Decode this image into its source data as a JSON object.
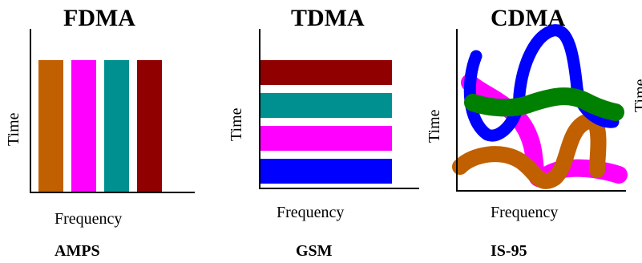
{
  "panels": [
    {
      "title": "FDMA",
      "y_axis_label": "Time",
      "x_axis_label": "Frequency",
      "system": "AMPS",
      "channels": [
        {
          "color": "#C06000"
        },
        {
          "color": "#FF00FF"
        },
        {
          "color": "#009090"
        },
        {
          "color": "#900000"
        }
      ]
    },
    {
      "title": "TDMA",
      "y_axis_label": "Time",
      "x_axis_label": "Frequency",
      "system": "GSM",
      "channels": [
        {
          "color": "#900000"
        },
        {
          "color": "#009090"
        },
        {
          "color": "#FF00FF"
        },
        {
          "color": "#0000FF"
        }
      ]
    },
    {
      "title": "CDMA",
      "y_axis_label": "Time",
      "x_axis_label": "Frequency",
      "system": "IS-95",
      "channels": [
        {
          "color": "#FF00FF"
        },
        {
          "color": "#C06000"
        },
        {
          "color": "#0000FF"
        },
        {
          "color": "#008000"
        }
      ]
    },
    {
      "y_axis_label": "Time"
    }
  ]
}
